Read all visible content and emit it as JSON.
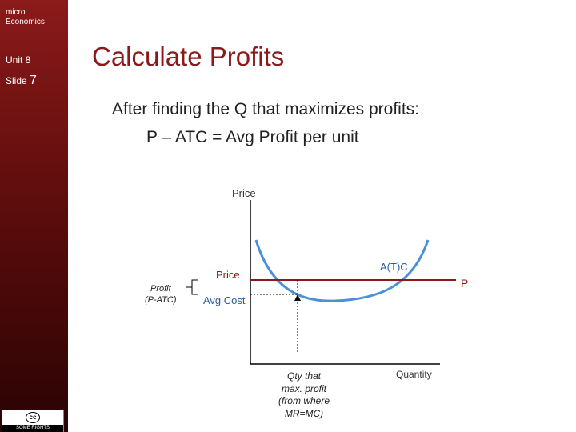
{
  "sidebar": {
    "course": [
      "micro",
      "Economics"
    ],
    "unit": "Unit 8",
    "slide_label": "Slide",
    "slide_number": "7",
    "badge": "SOME RIGHTS RESERVED",
    "badge_icon": "cc"
  },
  "title": "Calculate Profits",
  "bullets": [
    "After finding the Q that maximizes profits:",
    "P – ATC = Avg Profit per unit"
  ],
  "diagram": {
    "y_axis": "Price",
    "x_axis": "Quantity",
    "curve": "A(T)C",
    "price_line": "P",
    "price_label": "Price",
    "cost_label": "Avg Cost",
    "profit_label": [
      "Profit",
      "(P-ATC)"
    ],
    "qty_note": [
      "Qty that",
      "max. profit",
      "(from where",
      "MR=MC)"
    ]
  }
}
